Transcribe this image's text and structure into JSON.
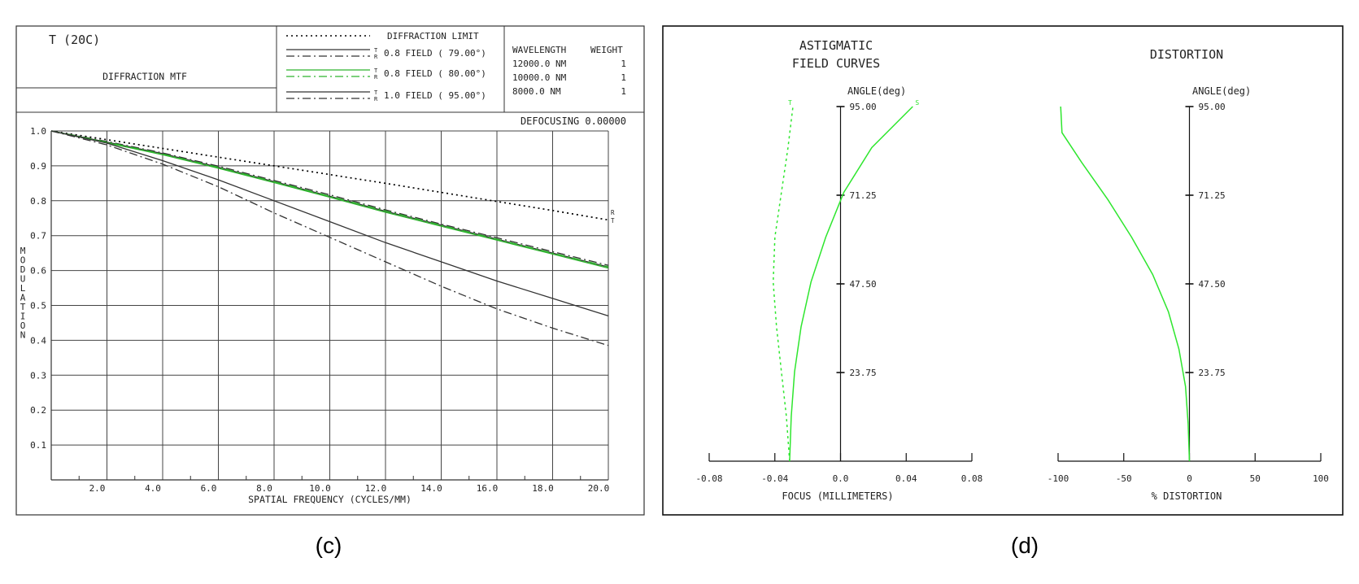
{
  "panel_c": {
    "caption": "(c)",
    "header": {
      "title": "T (20C)",
      "subtitle": "DIFFRACTION MTF",
      "legend": [
        {
          "label": "DIFFRACTION LIMIT",
          "marks": "",
          "field": "",
          "style": "dotted",
          "color": "#000000"
        },
        {
          "label": "0.8 FIELD ( 79.00°)",
          "marks": "T R",
          "style": "solid-dashdot",
          "color": "#333333"
        },
        {
          "label": "0.8 FIELD ( 80.00°)",
          "marks": "T R",
          "style": "solid-dashdot",
          "color": "#2db52d"
        },
        {
          "label": "1.0 FIELD ( 95.00°)",
          "marks": "T R",
          "style": "solid-dashdot",
          "color": "#333333"
        }
      ],
      "wavelength_header": "WAVELENGTH",
      "weight_header": "WEIGHT",
      "wavelengths": [
        {
          "wl": "12000.0 NM",
          "w": "1"
        },
        {
          "wl": "10000.0 NM",
          "w": "1"
        },
        {
          "wl": "8000.0 NM",
          "w": "1"
        }
      ]
    },
    "defocusing_label": "DEFOCUSING",
    "defocusing_value": "0.00000",
    "end_marks": [
      "R",
      "T"
    ]
  },
  "panel_d": {
    "caption": "(d)",
    "astig_title_line1": "ASTIGMATIC",
    "astig_title_line2": "FIELD CURVES",
    "distortion_title": "DISTORTION",
    "angle_label": "ANGLE(deg)",
    "angle_ticks": [
      "95.00",
      "71.25",
      "47.50",
      "23.75"
    ],
    "focus_ticks": [
      "-0.08",
      "-0.04",
      "0.0",
      "0.04",
      "0.08"
    ],
    "focus_xlabel": "FOCUS (MILLIMETERS)",
    "dist_ticks": [
      "-100",
      "-50",
      "0",
      "50",
      "100"
    ],
    "dist_xlabel": "% DISTORTION",
    "t_mark": "T",
    "s_mark": "S"
  },
  "chart_data": [
    {
      "type": "line",
      "title": "DIFFRACTION MTF",
      "xlabel": "SPATIAL FREQUENCY (CYCLES/MM)",
      "ylabel": "MODULATION",
      "xlim": [
        0,
        20
      ],
      "ylim": [
        0,
        1.0
      ],
      "x_ticks": [
        "2.0",
        "4.0",
        "6.0",
        "8.0",
        "10.0",
        "12.0",
        "14.0",
        "16.0",
        "18.0",
        "20.0"
      ],
      "y_ticks": [
        "0.1",
        "0.2",
        "0.3",
        "0.4",
        "0.5",
        "0.6",
        "0.7",
        "0.8",
        "0.9",
        "1.0"
      ],
      "grid": true,
      "x": [
        0,
        2,
        4,
        6,
        8,
        10,
        12,
        14,
        16,
        18,
        20
      ],
      "series": [
        {
          "name": "DIFFRACTION LIMIT",
          "style": "dotted",
          "color": "#000000",
          "values": [
            1.0,
            0.975,
            0.95,
            0.925,
            0.9,
            0.875,
            0.85,
            0.824,
            0.798,
            0.772,
            0.745
          ]
        },
        {
          "name": "0.8 FIELD ( 79.00°)",
          "line": "T",
          "style": "solid",
          "color": "#333333",
          "values": [
            1.0,
            0.968,
            0.935,
            0.896,
            0.855,
            0.813,
            0.77,
            0.73,
            0.69,
            0.65,
            0.61
          ]
        },
        {
          "name": "0.8 FIELD ( 79.00°)",
          "line": "R",
          "style": "dashdot",
          "color": "#333333",
          "values": [
            1.0,
            0.97,
            0.937,
            0.899,
            0.858,
            0.817,
            0.774,
            0.733,
            0.694,
            0.654,
            0.615
          ]
        },
        {
          "name": "0.8 FIELD ( 80.00°)",
          "line": "T",
          "style": "solid",
          "color": "#2db52d",
          "values": [
            1.0,
            0.966,
            0.932,
            0.893,
            0.852,
            0.81,
            0.767,
            0.727,
            0.687,
            0.647,
            0.607
          ]
        },
        {
          "name": "0.8 FIELD ( 80.00°)",
          "line": "R",
          "style": "dashdot",
          "color": "#2db52d",
          "values": [
            1.0,
            0.968,
            0.934,
            0.896,
            0.855,
            0.813,
            0.771,
            0.73,
            0.69,
            0.65,
            0.611
          ]
        },
        {
          "name": "1.0 FIELD ( 95.00°)",
          "line": "T",
          "style": "solid",
          "color": "#333333",
          "values": [
            1.0,
            0.965,
            0.915,
            0.86,
            0.8,
            0.74,
            0.68,
            0.625,
            0.57,
            0.52,
            0.47
          ]
        },
        {
          "name": "1.0 FIELD ( 95.00°)",
          "line": "R",
          "style": "dashdot",
          "color": "#333333",
          "values": [
            1.0,
            0.96,
            0.905,
            0.84,
            0.765,
            0.695,
            0.625,
            0.555,
            0.49,
            0.435,
            0.385
          ]
        }
      ]
    },
    {
      "type": "line",
      "title": "ASTIGMATIC FIELD CURVES",
      "xlabel": "FOCUS (MILLIMETERS)",
      "ylabel": "ANGLE(deg)",
      "xlim": [
        -0.08,
        0.08
      ],
      "ylim": [
        0,
        95
      ],
      "series": [
        {
          "name": "T",
          "style": "dotted",
          "color": "#2ee62e",
          "x": [
            -0.031,
            -0.033,
            -0.036,
            -0.039,
            -0.041,
            -0.04,
            -0.036,
            -0.032,
            -0.029
          ],
          "y": [
            0,
            12,
            24,
            36,
            48,
            60,
            72,
            84,
            95
          ]
        },
        {
          "name": "S",
          "style": "solid",
          "color": "#2ee62e",
          "x": [
            -0.031,
            -0.03,
            -0.028,
            -0.024,
            -0.018,
            -0.009,
            0.002,
            0.019,
            0.044
          ],
          "y": [
            0,
            12,
            24,
            36,
            48,
            60,
            72,
            84,
            95
          ]
        }
      ]
    },
    {
      "type": "line",
      "title": "DISTORTION",
      "xlabel": "% DISTORTION",
      "ylabel": "ANGLE(deg)",
      "xlim": [
        -100,
        100
      ],
      "ylim": [
        0,
        95
      ],
      "series": [
        {
          "style": "solid",
          "color": "#2ee62e",
          "x": [
            0,
            -1,
            -3,
            -8,
            -16,
            -28,
            -44,
            -62,
            -82,
            -97,
            -98
          ],
          "y": [
            0,
            10,
            20,
            30,
            40,
            50,
            60,
            70,
            80,
            88,
            95
          ]
        }
      ]
    }
  ]
}
